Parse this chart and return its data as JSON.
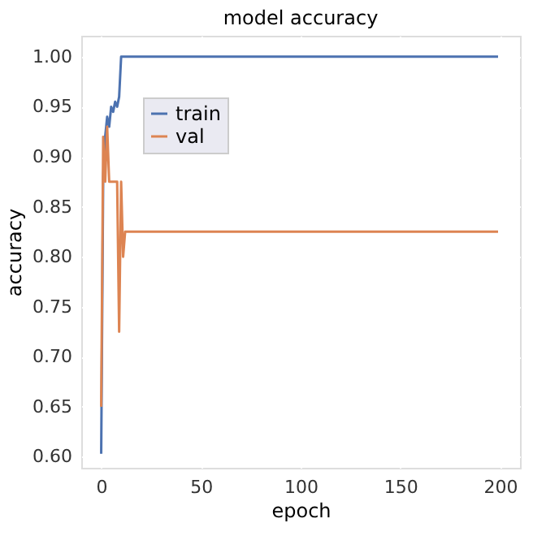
{
  "chart_data": {
    "type": "line",
    "title": "model accuracy",
    "xlabel": "epoch",
    "ylabel": "accuracy",
    "xlim": [
      -10,
      210
    ],
    "ylim": [
      0.589,
      1.021
    ],
    "xticks": [
      0,
      50,
      100,
      150,
      200
    ],
    "yticks": [
      {
        "value": 0.6,
        "label": "0.60"
      },
      0.65,
      {
        "value": 0.7,
        "label": "0.70"
      },
      0.75,
      {
        "value": 0.8,
        "label": "0.80"
      },
      0.85,
      {
        "value": 0.9,
        "label": "0.90"
      },
      0.95,
      {
        "value": 1.0,
        "label": "1.00"
      }
    ],
    "grid": true,
    "legend": "top left",
    "line_style": "solid",
    "marker": "none",
    "series": [
      {
        "name": "train",
        "color": "#4c72b0",
        "x": [
          0,
          1,
          2,
          3,
          4,
          5,
          6,
          7,
          8,
          9,
          10,
          11,
          12,
          199
        ],
        "values": [
          0.603,
          0.88,
          0.92,
          0.94,
          0.93,
          0.95,
          0.945,
          0.955,
          0.95,
          0.96,
          1.0,
          1.0,
          1.0,
          1.0
        ]
      },
      {
        "name": "val",
        "color": "#dd8452",
        "x": [
          0,
          1,
          2,
          3,
          4,
          5,
          6,
          7,
          8,
          9,
          10,
          11,
          12,
          199
        ],
        "values": [
          0.65,
          0.92,
          0.875,
          0.93,
          0.875,
          0.875,
          0.875,
          0.875,
          0.875,
          0.725,
          0.875,
          0.8,
          0.825,
          0.825
        ]
      }
    ]
  }
}
